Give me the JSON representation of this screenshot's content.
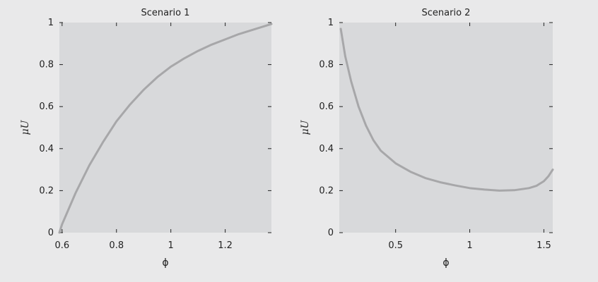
{
  "colors": {
    "background": "#e9e9ea",
    "plot_area": "#d8d9db",
    "curve": "#a7a7a9",
    "tick": "#222222",
    "text": "#222222"
  },
  "chart_data": [
    {
      "type": "line",
      "title": "Scenario 1",
      "xlabel": "ϕ",
      "ylabel": "μU",
      "xlim": [
        0.59,
        1.37
      ],
      "ylim": [
        0,
        1
      ],
      "x_ticks": [
        0.6,
        0.8,
        1,
        1.2
      ],
      "x_tick_labels": [
        "0.6",
        "0.8",
        "1",
        "1.2"
      ],
      "y_ticks": [
        0,
        0.2,
        0.4,
        0.6,
        0.8,
        1
      ],
      "y_tick_labels": [
        "0",
        "0.2",
        "0.4",
        "0.6",
        "0.8",
        "1"
      ],
      "grid": false,
      "series": [
        {
          "x": [
            0.59,
            0.6,
            0.65,
            0.7,
            0.75,
            0.8,
            0.85,
            0.9,
            0.95,
            1.0,
            1.05,
            1.1,
            1.15,
            1.2,
            1.25,
            1.3,
            1.35,
            1.37
          ],
          "y": [
            0.0,
            0.04,
            0.19,
            0.32,
            0.43,
            0.53,
            0.61,
            0.68,
            0.74,
            0.79,
            0.83,
            0.865,
            0.895,
            0.92,
            0.945,
            0.965,
            0.985,
            0.993
          ]
        }
      ]
    },
    {
      "type": "line",
      "title": "Scenario 2",
      "xlabel": "ϕ",
      "ylabel": "μU",
      "xlim": [
        0.12,
        1.56
      ],
      "ylim": [
        0,
        1
      ],
      "x_ticks": [
        0.5,
        1,
        1.5
      ],
      "x_tick_labels": [
        "0.5",
        "1",
        "1.5"
      ],
      "y_ticks": [
        0,
        0.2,
        0.4,
        0.6,
        0.8,
        1
      ],
      "y_tick_labels": [
        "0",
        "0.2",
        "0.4",
        "0.6",
        "0.8",
        "1"
      ],
      "grid": false,
      "series": [
        {
          "x": [
            0.13,
            0.16,
            0.2,
            0.25,
            0.3,
            0.35,
            0.4,
            0.5,
            0.6,
            0.7,
            0.8,
            0.9,
            1.0,
            1.1,
            1.2,
            1.3,
            1.4,
            1.45,
            1.5,
            1.53,
            1.56
          ],
          "y": [
            0.97,
            0.84,
            0.72,
            0.6,
            0.51,
            0.44,
            0.39,
            0.33,
            0.29,
            0.26,
            0.24,
            0.225,
            0.212,
            0.205,
            0.2,
            0.202,
            0.212,
            0.223,
            0.245,
            0.268,
            0.3
          ]
        }
      ]
    }
  ]
}
